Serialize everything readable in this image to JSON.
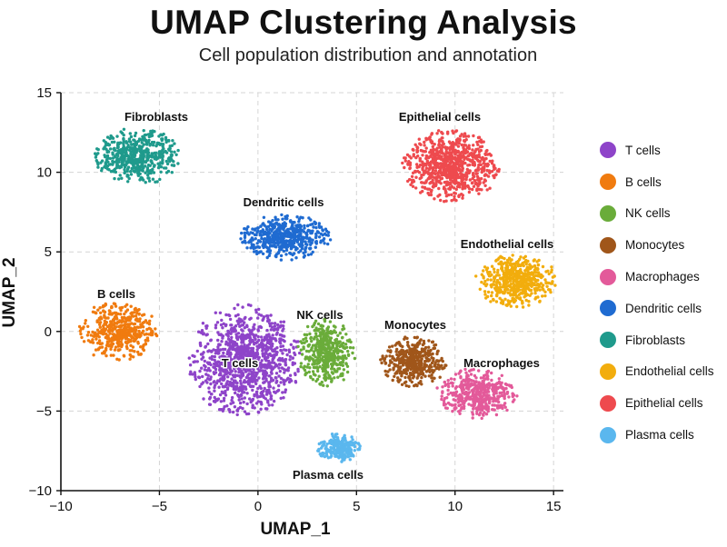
{
  "header": {
    "title": "UMAP Clustering Analysis",
    "subtitle": "Cell population distribution and annotation"
  },
  "chart_data": {
    "type": "scatter",
    "xlabel": "UMAP_1",
    "ylabel": "UMAP_2",
    "xlim": [
      -10,
      15.5
    ],
    "ylim": [
      -10,
      15
    ],
    "xticks": [
      "−10",
      "−5",
      "0",
      "5",
      "10",
      "15"
    ],
    "xtick_values": [
      -10,
      -5,
      0,
      5,
      10,
      15
    ],
    "yticks": [
      "15",
      "10",
      "5",
      "0",
      "−5",
      "−10"
    ],
    "ytick_values": [
      15,
      10,
      5,
      0,
      -5,
      -10
    ],
    "grid": true,
    "legend_placement": "right",
    "series": [
      {
        "name": "T cells",
        "color": "#8e44c9",
        "center": [
          -0.7,
          -1.8
        ],
        "spread": [
          2.9,
          3.5
        ],
        "count": 1100,
        "label": "T cells"
      },
      {
        "name": "B cells",
        "color": "#f07b0f",
        "center": [
          -7.1,
          0.0
        ],
        "spread": [
          2.0,
          1.9
        ],
        "count": 450,
        "label": "B cells"
      },
      {
        "name": "NK cells",
        "color": "#6aac3a",
        "center": [
          3.5,
          -1.3
        ],
        "spread": [
          1.5,
          2.2
        ],
        "count": 420,
        "label": "NK cells"
      },
      {
        "name": "Monocytes",
        "color": "#a0561a",
        "center": [
          7.9,
          -1.9
        ],
        "spread": [
          1.7,
          1.6
        ],
        "count": 420,
        "label": "Monocytes"
      },
      {
        "name": "Macrophages",
        "color": "#e35a9a",
        "center": [
          11.1,
          -3.9
        ],
        "spread": [
          2.1,
          1.6
        ],
        "count": 450,
        "label": "Macrophages"
      },
      {
        "name": "Dendritic cells",
        "color": "#1f6bd1",
        "center": [
          1.4,
          5.9
        ],
        "spread": [
          2.3,
          1.5
        ],
        "count": 520,
        "label": "Dendritic cells"
      },
      {
        "name": "Fibroblasts",
        "color": "#1f9a8c",
        "center": [
          -6.1,
          11.0
        ],
        "spread": [
          2.2,
          1.8
        ],
        "count": 520,
        "label": "Fibroblasts"
      },
      {
        "name": "Endothelial cells",
        "color": "#f2ad0d",
        "center": [
          13.1,
          3.2
        ],
        "spread": [
          2.1,
          1.7
        ],
        "count": 520,
        "label": "Endothelial cells"
      },
      {
        "name": "Epithelial cells",
        "color": "#ee4a4e",
        "center": [
          9.8,
          10.4
        ],
        "spread": [
          2.5,
          2.3
        ],
        "count": 820,
        "label": "Epithelial cells"
      },
      {
        "name": "Plasma cells",
        "color": "#5ab7ee",
        "center": [
          4.1,
          -7.3
        ],
        "spread": [
          1.2,
          0.9
        ],
        "count": 220,
        "label": "Plasma cells"
      }
    ]
  }
}
